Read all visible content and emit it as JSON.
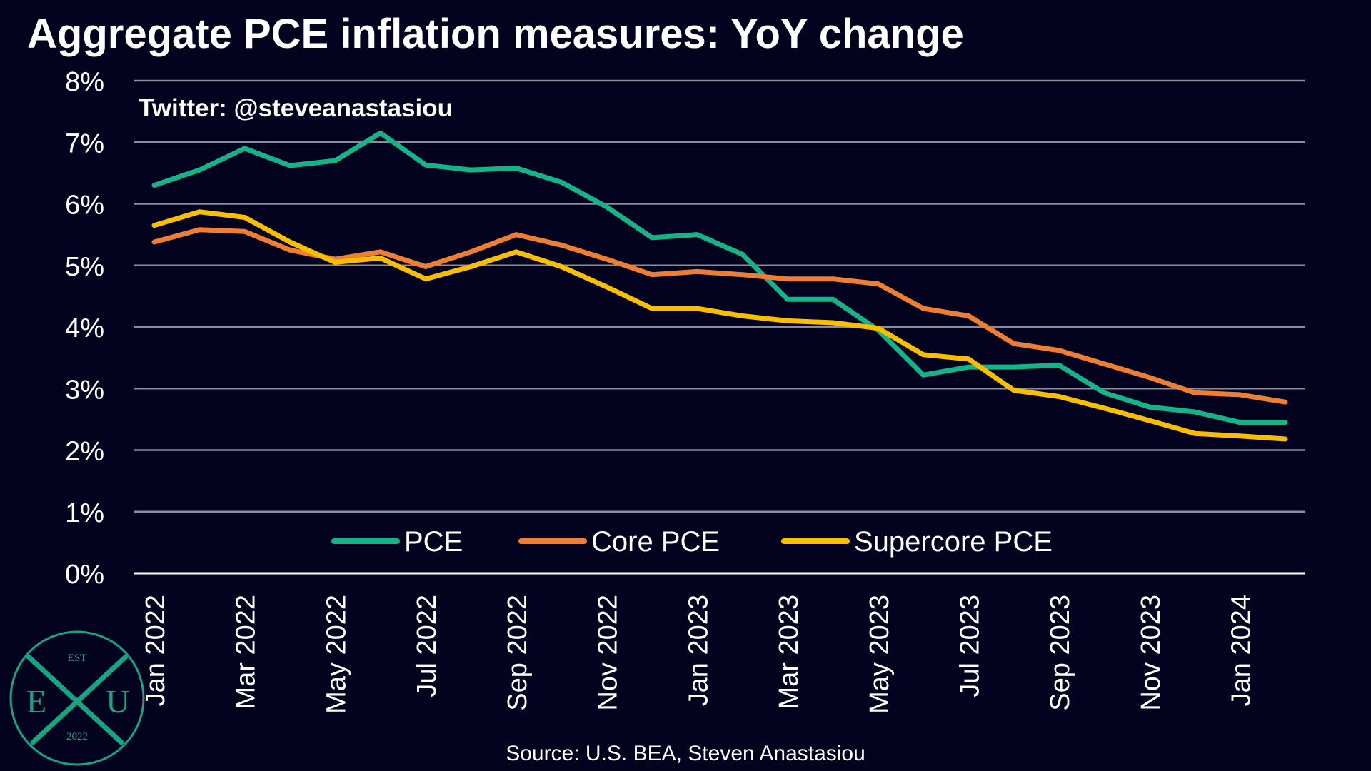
{
  "colors": {
    "background": "#03021f",
    "grid": "#8d8c9a",
    "axis": "#ffffff",
    "text": "#ffffff",
    "logo": "#17a581"
  },
  "logo": {
    "top_text": "EST",
    "left_letter": "E",
    "right_letter": "U",
    "bottom_text": "2022"
  },
  "chart_data": {
    "type": "line",
    "title": "Aggregate PCE inflation measures: YoY change",
    "annotation": "Twitter: @steveanastasiou",
    "source": "Source: U.S. BEA, Steven Anastasiou",
    "xlabel": "",
    "ylabel": "",
    "ylim": [
      0,
      8
    ],
    "grid": true,
    "legend_position": "bottom-center",
    "y_ticks": [
      "0%",
      "1%",
      "2%",
      "3%",
      "4%",
      "5%",
      "6%",
      "7%",
      "8%"
    ],
    "x_tick_labels": [
      {
        "index": 0,
        "label": "Jan 2022"
      },
      {
        "index": 2,
        "label": "Mar 2022"
      },
      {
        "index": 4,
        "label": "May 2022"
      },
      {
        "index": 6,
        "label": "Jul 2022"
      },
      {
        "index": 8,
        "label": "Sep 2022"
      },
      {
        "index": 10,
        "label": "Nov 2022"
      },
      {
        "index": 12,
        "label": "Jan 2023"
      },
      {
        "index": 14,
        "label": "Mar 2023"
      },
      {
        "index": 16,
        "label": "May 2023"
      },
      {
        "index": 18,
        "label": "Jul 2023"
      },
      {
        "index": 20,
        "label": "Sep 2023"
      },
      {
        "index": 22,
        "label": "Nov 2023"
      },
      {
        "index": 24,
        "label": "Jan 2024"
      }
    ],
    "categories": [
      "Jan 2022",
      "Feb 2022",
      "Mar 2022",
      "Apr 2022",
      "May 2022",
      "Jun 2022",
      "Jul 2022",
      "Aug 2022",
      "Sep 2022",
      "Oct 2022",
      "Nov 2022",
      "Dec 2022",
      "Jan 2023",
      "Feb 2023",
      "Mar 2023",
      "Apr 2023",
      "May 2023",
      "Jun 2023",
      "Jul 2023",
      "Aug 2023",
      "Sep 2023",
      "Oct 2023",
      "Nov 2023",
      "Dec 2023",
      "Jan 2024",
      "Feb 2024"
    ],
    "series": [
      {
        "name": "PCE",
        "color": "#17b388",
        "values": [
          6.3,
          6.55,
          6.9,
          6.62,
          6.7,
          7.15,
          6.63,
          6.55,
          6.58,
          6.35,
          5.95,
          5.45,
          5.5,
          5.18,
          4.45,
          4.45,
          3.95,
          3.22,
          3.35,
          3.35,
          3.38,
          2.93,
          2.7,
          2.62,
          2.45,
          2.45
        ]
      },
      {
        "name": "Core PCE",
        "color": "#ee7e33",
        "values": [
          5.38,
          5.58,
          5.55,
          5.25,
          5.1,
          5.22,
          4.98,
          5.22,
          5.5,
          5.33,
          5.1,
          4.85,
          4.9,
          4.85,
          4.78,
          4.78,
          4.7,
          4.3,
          4.18,
          3.73,
          3.62,
          3.4,
          3.18,
          2.93,
          2.9,
          2.78
        ]
      },
      {
        "name": "Supercore PCE",
        "color": "#f8bf00",
        "values": [
          5.65,
          5.87,
          5.78,
          5.38,
          5.05,
          5.12,
          4.78,
          4.98,
          5.22,
          4.98,
          4.65,
          4.3,
          4.3,
          4.18,
          4.1,
          4.07,
          3.98,
          3.55,
          3.48,
          2.97,
          2.87,
          2.68,
          2.48,
          2.27,
          2.23,
          2.18
        ]
      }
    ]
  }
}
